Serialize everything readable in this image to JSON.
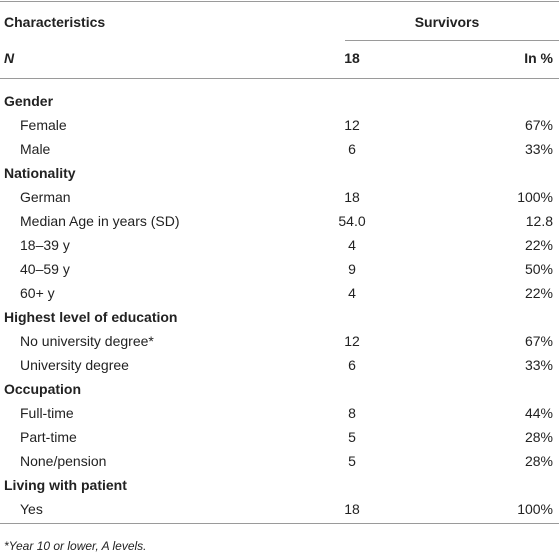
{
  "table": {
    "header": {
      "characteristics": "Characteristics",
      "survivors": "Survivors"
    },
    "subheader": [
      "N",
      "18",
      "In %"
    ],
    "rows": [
      [
        "Gender"
      ],
      [
        "Female",
        "12",
        "67%"
      ],
      [
        "Male",
        "6",
        "33%"
      ],
      [
        "Nationality"
      ],
      [
        "German",
        "18",
        "100%"
      ],
      [
        "Median Age in years (SD)",
        "54.0",
        "12.8"
      ],
      [
        "18–39 y",
        "4",
        "22%"
      ],
      [
        "40–59 y",
        "9",
        "50%"
      ],
      [
        "60+ y",
        "4",
        "22%"
      ],
      [
        "Highest level of education"
      ],
      [
        "No university degree*",
        "12",
        "67%"
      ],
      [
        "University degree",
        "6",
        "33%"
      ],
      [
        "Occupation"
      ],
      [
        "Full-time",
        "8",
        "44%"
      ],
      [
        "Part-time",
        "5",
        "28%"
      ],
      [
        "None/pension",
        "5",
        "28%"
      ],
      [
        "Living with patient"
      ],
      [
        "Yes",
        "18",
        "100%"
      ]
    ]
  },
  "footnote": "*Year 10 or lower, A levels."
}
